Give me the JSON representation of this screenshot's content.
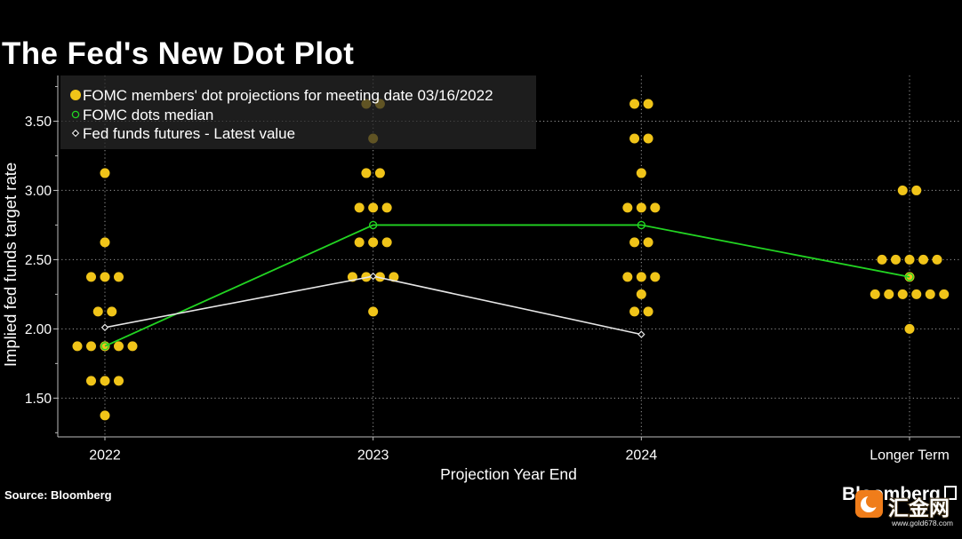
{
  "chart_data": {
    "type": "scatter",
    "title": "The Fed's New Dot Plot",
    "xlabel": "Projection Year End",
    "ylabel": "Implied fed funds target rate",
    "categories": [
      "2022",
      "2023",
      "2024",
      "Longer Term"
    ],
    "yticks": [
      {
        "value": 1.5,
        "label": "1.50"
      },
      {
        "value": 2.0,
        "label": "2.00"
      },
      {
        "value": 2.5,
        "label": "2.50"
      },
      {
        "value": 3.0,
        "label": "3.00"
      },
      {
        "value": 3.5,
        "label": "3.50"
      }
    ],
    "ylim": [
      1.22,
      3.83
    ],
    "grid": true,
    "legend_position": "top-left",
    "series": [
      {
        "name": "FOMC members' dot projections for meeting date 03/16/2022",
        "marker": "filled-circle",
        "color": "#f0c419",
        "dots": [
          [
            {
              "rate": 3.125,
              "count": 1
            },
            {
              "rate": 2.625,
              "count": 1
            },
            {
              "rate": 2.375,
              "count": 3
            },
            {
              "rate": 2.125,
              "count": 2
            },
            {
              "rate": 1.875,
              "count": 5
            },
            {
              "rate": 1.625,
              "count": 3
            },
            {
              "rate": 1.375,
              "count": 1
            }
          ],
          [
            {
              "rate": 3.625,
              "count": 2
            },
            {
              "rate": 3.375,
              "count": 1
            },
            {
              "rate": 3.125,
              "count": 2
            },
            {
              "rate": 2.875,
              "count": 3
            },
            {
              "rate": 2.625,
              "count": 3
            },
            {
              "rate": 2.375,
              "count": 4
            },
            {
              "rate": 2.125,
              "count": 1
            }
          ],
          [
            {
              "rate": 3.625,
              "count": 2
            },
            {
              "rate": 3.375,
              "count": 2
            },
            {
              "rate": 3.125,
              "count": 1
            },
            {
              "rate": 2.875,
              "count": 3
            },
            {
              "rate": 2.625,
              "count": 2
            },
            {
              "rate": 2.375,
              "count": 3
            },
            {
              "rate": 2.25,
              "count": 1
            },
            {
              "rate": 2.125,
              "count": 2
            }
          ],
          [
            {
              "rate": 3.0,
              "count": 2
            },
            {
              "rate": 2.5,
              "count": 5
            },
            {
              "rate": 2.375,
              "count": 1
            },
            {
              "rate": 2.25,
              "count": 6
            },
            {
              "rate": 2.0,
              "count": 1
            }
          ]
        ]
      },
      {
        "name": "FOMC dots median",
        "marker": "open-circle",
        "color": "#22d422",
        "values": [
          1.875,
          2.75,
          2.75,
          2.375
        ]
      },
      {
        "name": "Fed funds futures - Latest value",
        "marker": "diamond",
        "color": "#e6e6e6",
        "values": [
          2.01,
          2.38,
          1.96,
          null
        ]
      }
    ]
  },
  "footer": {
    "source": "Source: Bloomberg"
  },
  "branding": {
    "logo": "Bloomberg",
    "watermark_name": "汇金网",
    "watermark_url": "www.gold678.com"
  },
  "colors": {
    "background": "#000000",
    "text": "#ffffff",
    "grid": "#9a9a9a",
    "axis": "#bdbdbd",
    "legend_background": "#282828",
    "watermark_accent": "#f07d1a"
  }
}
